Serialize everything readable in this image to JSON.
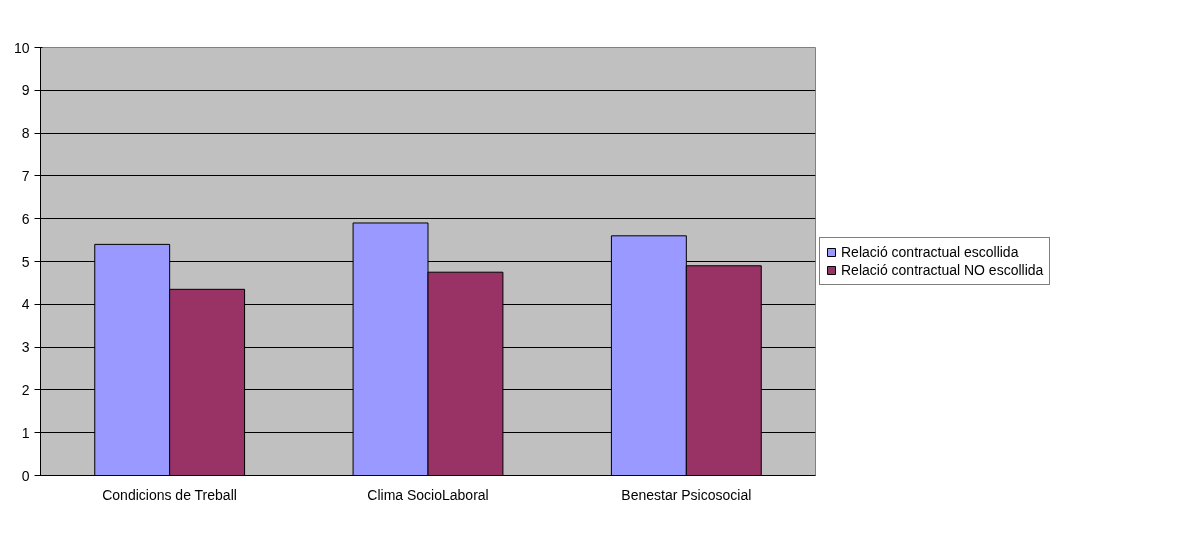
{
  "chart_data": {
    "type": "bar",
    "categories": [
      "Condicions de Treball",
      "Clima SocioLaboral",
      "Benestar Psicosocial"
    ],
    "series": [
      {
        "name": "Relació contractual escollida",
        "color": "#9999ff",
        "values": [
          5.4,
          5.9,
          5.6
        ]
      },
      {
        "name": "Relació contractual NO escollida",
        "color": "#993366",
        "values": [
          4.35,
          4.75,
          4.9
        ]
      }
    ],
    "ylim": [
      0,
      10
    ],
    "yticks": [
      0,
      1,
      2,
      3,
      4,
      5,
      6,
      7,
      8,
      9,
      10
    ],
    "grid": "y",
    "legend": "right"
  }
}
